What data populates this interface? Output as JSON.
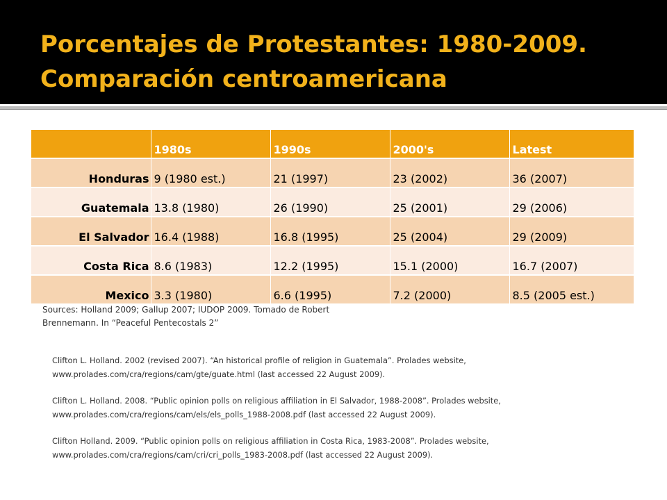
{
  "slide": {
    "title_line1": "Porcentajes de Protestantes: 1980-2009.",
    "title_line2": "Comparación centroamericana"
  },
  "colors": {
    "title_bar": "#000000",
    "title_text": "#f2b21b",
    "header_fill": "#f0a20f",
    "row_fill_dark": "#f6d4b1",
    "row_fill_light": "#fbebe0"
  },
  "table": {
    "headers": [
      "",
      "1980s",
      "1990s",
      "2000's",
      "Latest"
    ],
    "rows": [
      {
        "country": "Honduras",
        "cells": [
          "9 (1980 est.)",
          "21 (1997)",
          "23 (2002)",
          "36 (2007)"
        ]
      },
      {
        "country": "Guatemala",
        "cells": [
          "13.8 (1980)",
          "26 (1990)",
          "25 (2001)",
          "29 (2006)"
        ]
      },
      {
        "country": "El Salvador",
        "cells": [
          "16.4 (1988)",
          "16.8 (1995)",
          "25 (2004)",
          "29 (2009)"
        ]
      },
      {
        "country": "Costa Rica",
        "cells": [
          "8.6 (1983)",
          "12.2 (1995)",
          "15.1 (2000)",
          "16.7 (2007)"
        ]
      },
      {
        "country": "Mexico",
        "cells": [
          "3.3 (1980)",
          "6.6 (1995)",
          "7.2 (2000)",
          "8.5 (2005 est.)"
        ]
      }
    ]
  },
  "sources": {
    "line1": "Sources: Holland 2009; Gallup 2007; IUDOP 2009. Tomado de Robert",
    "line2": "Brennemann. In “Peaceful Pentecostals 2”"
  },
  "references": [
    {
      "line1": "Clifton L. Holland. 2002 (revised 2007).  “An historical profile of religion in Guatemala”. Prolades website,",
      "line2": "www.prolades.com/cra/regions/cam/gte/guate.html (last accessed 22 August 2009)."
    },
    {
      "line1": "Clifton L. Holland. 2008.  “Public opinion polls on religious affiliation in El Salvador, 1988-2008”.  Prolades website,",
      "line2": "www.prolades.com/cra/regions/cam/els/els_polls_1988-2008.pdf (last accessed 22 August 2009)."
    },
    {
      "line1": "Clifton Holland. 2009.  “Public opinion polls on religious affiliation in Costa Rica, 1983-2008”.  Prolades website,",
      "line2": "www.prolades.com/cra/regions/cam/cri/cri_polls_1983-2008.pdf (last accessed 22 August 2009)."
    }
  ]
}
